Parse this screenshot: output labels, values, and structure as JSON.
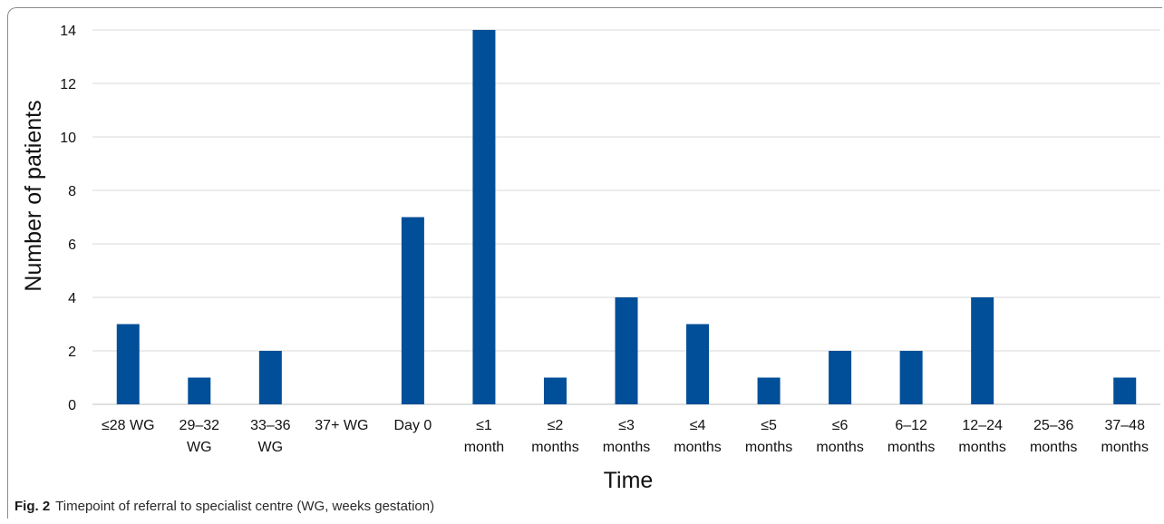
{
  "caption": {
    "label": "Fig. 2",
    "text": "Timepoint of referral to specialist centre (WG, weeks gestation)"
  },
  "colors": {
    "bar": "#004f98",
    "grid": "#d9d9d9",
    "axis": "#bfbfbf"
  },
  "chart_data": {
    "type": "bar",
    "title": "",
    "xlabel": "Time",
    "ylabel": "Number of patients",
    "ylim": [
      0,
      14
    ],
    "yticks": [
      0,
      2,
      4,
      6,
      8,
      10,
      12,
      14
    ],
    "grid": true,
    "categories": [
      [
        "≤28 WG"
      ],
      [
        "29–32",
        "WG"
      ],
      [
        "33–36",
        "WG"
      ],
      [
        "37+ WG"
      ],
      [
        "Day 0"
      ],
      [
        "≤1",
        "month"
      ],
      [
        "≤2",
        "months"
      ],
      [
        "≤3",
        "months"
      ],
      [
        "≤4",
        "months"
      ],
      [
        "≤5",
        "months"
      ],
      [
        "≤6",
        "months"
      ],
      [
        "6–12",
        "months"
      ],
      [
        "12–24",
        "months"
      ],
      [
        "25–36",
        "months"
      ],
      [
        "37–48",
        "months"
      ]
    ],
    "values": [
      3,
      1,
      2,
      0,
      7,
      14,
      1,
      4,
      3,
      1,
      2,
      2,
      4,
      0,
      1
    ]
  }
}
